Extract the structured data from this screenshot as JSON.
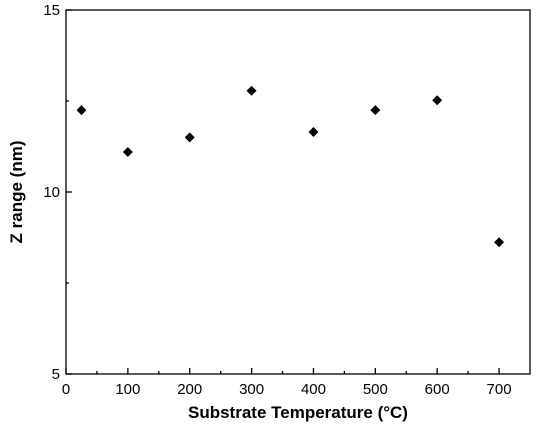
{
  "chart_data": {
    "type": "scatter",
    "title": "",
    "xlabel": "Substrate Temperature (°C)",
    "ylabel": "Z range (nm)",
    "xlim": [
      0,
      750
    ],
    "ylim": [
      5,
      15
    ],
    "x_ticks": [
      "0",
      "100",
      "200",
      "300",
      "400",
      "500",
      "600",
      "700"
    ],
    "y_ticks": [
      "5",
      "10",
      "15"
    ],
    "grid": false,
    "marker": "diamond",
    "marker_color": "#000000",
    "series": [
      {
        "x": [
          25,
          100,
          200,
          300,
          400,
          500,
          600,
          700
        ],
        "y": [
          12.25,
          11.1,
          11.5,
          12.78,
          11.65,
          12.25,
          12.52,
          8.62
        ]
      }
    ]
  }
}
